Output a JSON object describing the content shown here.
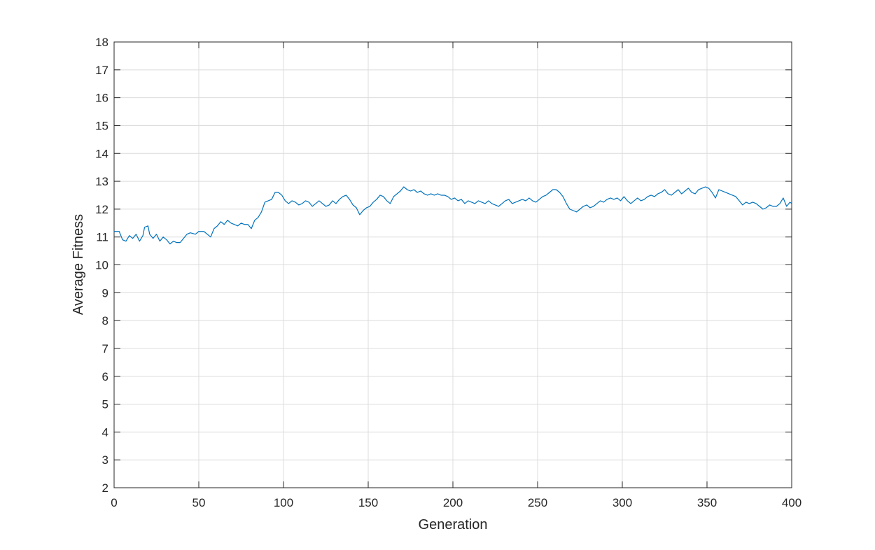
{
  "chart_data": {
    "type": "line",
    "title": "",
    "xlabel": "Generation",
    "ylabel": "Average Fitness",
    "xlim": [
      0,
      400
    ],
    "ylim": [
      2,
      18
    ],
    "xticks": [
      0,
      50,
      100,
      150,
      200,
      250,
      300,
      350,
      400
    ],
    "yticks": [
      2,
      3,
      4,
      5,
      6,
      7,
      8,
      9,
      10,
      11,
      12,
      13,
      14,
      15,
      16,
      17,
      18
    ],
    "grid": true,
    "line_color": "#0072bd",
    "series": [
      {
        "points": [
          [
            0,
            11.2
          ],
          [
            3,
            11.2
          ],
          [
            5,
            10.9
          ],
          [
            7,
            10.85
          ],
          [
            9,
            11.05
          ],
          [
            11,
            10.95
          ],
          [
            13,
            11.1
          ],
          [
            15,
            10.85
          ],
          [
            17,
            11.05
          ],
          [
            18,
            11.35
          ],
          [
            20,
            11.4
          ],
          [
            21,
            11.1
          ],
          [
            23,
            10.95
          ],
          [
            25,
            11.1
          ],
          [
            27,
            10.85
          ],
          [
            29,
            11.0
          ],
          [
            31,
            10.9
          ],
          [
            33,
            10.75
          ],
          [
            35,
            10.85
          ],
          [
            37,
            10.8
          ],
          [
            39,
            10.8
          ],
          [
            41,
            10.95
          ],
          [
            43,
            11.1
          ],
          [
            45,
            11.15
          ],
          [
            48,
            11.1
          ],
          [
            50,
            11.2
          ],
          [
            53,
            11.2
          ],
          [
            55,
            11.1
          ],
          [
            57,
            11.0
          ],
          [
            59,
            11.3
          ],
          [
            61,
            11.4
          ],
          [
            63,
            11.55
          ],
          [
            65,
            11.45
          ],
          [
            67,
            11.6
          ],
          [
            69,
            11.5
          ],
          [
            71,
            11.45
          ],
          [
            73,
            11.4
          ],
          [
            75,
            11.5
          ],
          [
            77,
            11.45
          ],
          [
            79,
            11.45
          ],
          [
            81,
            11.3
          ],
          [
            83,
            11.6
          ],
          [
            85,
            11.7
          ],
          [
            87,
            11.9
          ],
          [
            89,
            12.25
          ],
          [
            91,
            12.3
          ],
          [
            93,
            12.35
          ],
          [
            95,
            12.6
          ],
          [
            97,
            12.6
          ],
          [
            99,
            12.5
          ],
          [
            101,
            12.3
          ],
          [
            103,
            12.2
          ],
          [
            105,
            12.3
          ],
          [
            107,
            12.25
          ],
          [
            109,
            12.15
          ],
          [
            111,
            12.2
          ],
          [
            113,
            12.3
          ],
          [
            115,
            12.25
          ],
          [
            117,
            12.1
          ],
          [
            119,
            12.2
          ],
          [
            121,
            12.3
          ],
          [
            123,
            12.2
          ],
          [
            125,
            12.1
          ],
          [
            127,
            12.15
          ],
          [
            129,
            12.3
          ],
          [
            131,
            12.2
          ],
          [
            133,
            12.35
          ],
          [
            135,
            12.45
          ],
          [
            137,
            12.5
          ],
          [
            139,
            12.35
          ],
          [
            141,
            12.15
          ],
          [
            143,
            12.05
          ],
          [
            145,
            11.8
          ],
          [
            147,
            11.95
          ],
          [
            149,
            12.05
          ],
          [
            151,
            12.1
          ],
          [
            153,
            12.25
          ],
          [
            155,
            12.35
          ],
          [
            157,
            12.5
          ],
          [
            159,
            12.45
          ],
          [
            161,
            12.3
          ],
          [
            163,
            12.2
          ],
          [
            165,
            12.45
          ],
          [
            167,
            12.55
          ],
          [
            169,
            12.65
          ],
          [
            171,
            12.8
          ],
          [
            173,
            12.7
          ],
          [
            175,
            12.65
          ],
          [
            177,
            12.7
          ],
          [
            179,
            12.6
          ],
          [
            181,
            12.65
          ],
          [
            183,
            12.55
          ],
          [
            185,
            12.5
          ],
          [
            187,
            12.55
          ],
          [
            189,
            12.5
          ],
          [
            191,
            12.55
          ],
          [
            193,
            12.5
          ],
          [
            195,
            12.5
          ],
          [
            197,
            12.45
          ],
          [
            199,
            12.35
          ],
          [
            201,
            12.4
          ],
          [
            203,
            12.3
          ],
          [
            205,
            12.35
          ],
          [
            207,
            12.2
          ],
          [
            209,
            12.3
          ],
          [
            211,
            12.25
          ],
          [
            213,
            12.2
          ],
          [
            215,
            12.3
          ],
          [
            217,
            12.25
          ],
          [
            219,
            12.2
          ],
          [
            221,
            12.3
          ],
          [
            223,
            12.2
          ],
          [
            225,
            12.15
          ],
          [
            227,
            12.1
          ],
          [
            229,
            12.2
          ],
          [
            231,
            12.3
          ],
          [
            233,
            12.35
          ],
          [
            235,
            12.2
          ],
          [
            237,
            12.25
          ],
          [
            239,
            12.3
          ],
          [
            241,
            12.35
          ],
          [
            243,
            12.3
          ],
          [
            245,
            12.4
          ],
          [
            247,
            12.3
          ],
          [
            249,
            12.25
          ],
          [
            251,
            12.35
          ],
          [
            253,
            12.45
          ],
          [
            255,
            12.5
          ],
          [
            257,
            12.6
          ],
          [
            259,
            12.7
          ],
          [
            261,
            12.7
          ],
          [
            263,
            12.6
          ],
          [
            265,
            12.45
          ],
          [
            267,
            12.2
          ],
          [
            269,
            12.0
          ],
          [
            271,
            11.95
          ],
          [
            273,
            11.9
          ],
          [
            275,
            12.0
          ],
          [
            277,
            12.1
          ],
          [
            279,
            12.15
          ],
          [
            281,
            12.05
          ],
          [
            283,
            12.1
          ],
          [
            285,
            12.2
          ],
          [
            287,
            12.3
          ],
          [
            289,
            12.25
          ],
          [
            291,
            12.35
          ],
          [
            293,
            12.4
          ],
          [
            295,
            12.35
          ],
          [
            297,
            12.4
          ],
          [
            299,
            12.3
          ],
          [
            301,
            12.45
          ],
          [
            303,
            12.3
          ],
          [
            305,
            12.2
          ],
          [
            307,
            12.3
          ],
          [
            309,
            12.4
          ],
          [
            311,
            12.3
          ],
          [
            313,
            12.35
          ],
          [
            315,
            12.45
          ],
          [
            317,
            12.5
          ],
          [
            319,
            12.45
          ],
          [
            321,
            12.55
          ],
          [
            323,
            12.6
          ],
          [
            325,
            12.7
          ],
          [
            327,
            12.55
          ],
          [
            329,
            12.5
          ],
          [
            331,
            12.6
          ],
          [
            333,
            12.7
          ],
          [
            335,
            12.55
          ],
          [
            337,
            12.65
          ],
          [
            339,
            12.75
          ],
          [
            341,
            12.6
          ],
          [
            343,
            12.55
          ],
          [
            345,
            12.7
          ],
          [
            347,
            12.75
          ],
          [
            349,
            12.8
          ],
          [
            351,
            12.75
          ],
          [
            353,
            12.6
          ],
          [
            355,
            12.4
          ],
          [
            357,
            12.7
          ],
          [
            359,
            12.65
          ],
          [
            361,
            12.6
          ],
          [
            363,
            12.55
          ],
          [
            365,
            12.5
          ],
          [
            367,
            12.45
          ],
          [
            369,
            12.3
          ],
          [
            371,
            12.15
          ],
          [
            373,
            12.25
          ],
          [
            375,
            12.2
          ],
          [
            377,
            12.25
          ],
          [
            379,
            12.2
          ],
          [
            381,
            12.1
          ],
          [
            383,
            12.0
          ],
          [
            385,
            12.05
          ],
          [
            387,
            12.15
          ],
          [
            389,
            12.1
          ],
          [
            391,
            12.1
          ],
          [
            393,
            12.2
          ],
          [
            395,
            12.4
          ],
          [
            397,
            12.1
          ],
          [
            399,
            12.25
          ],
          [
            400,
            12.2
          ]
        ]
      }
    ]
  }
}
